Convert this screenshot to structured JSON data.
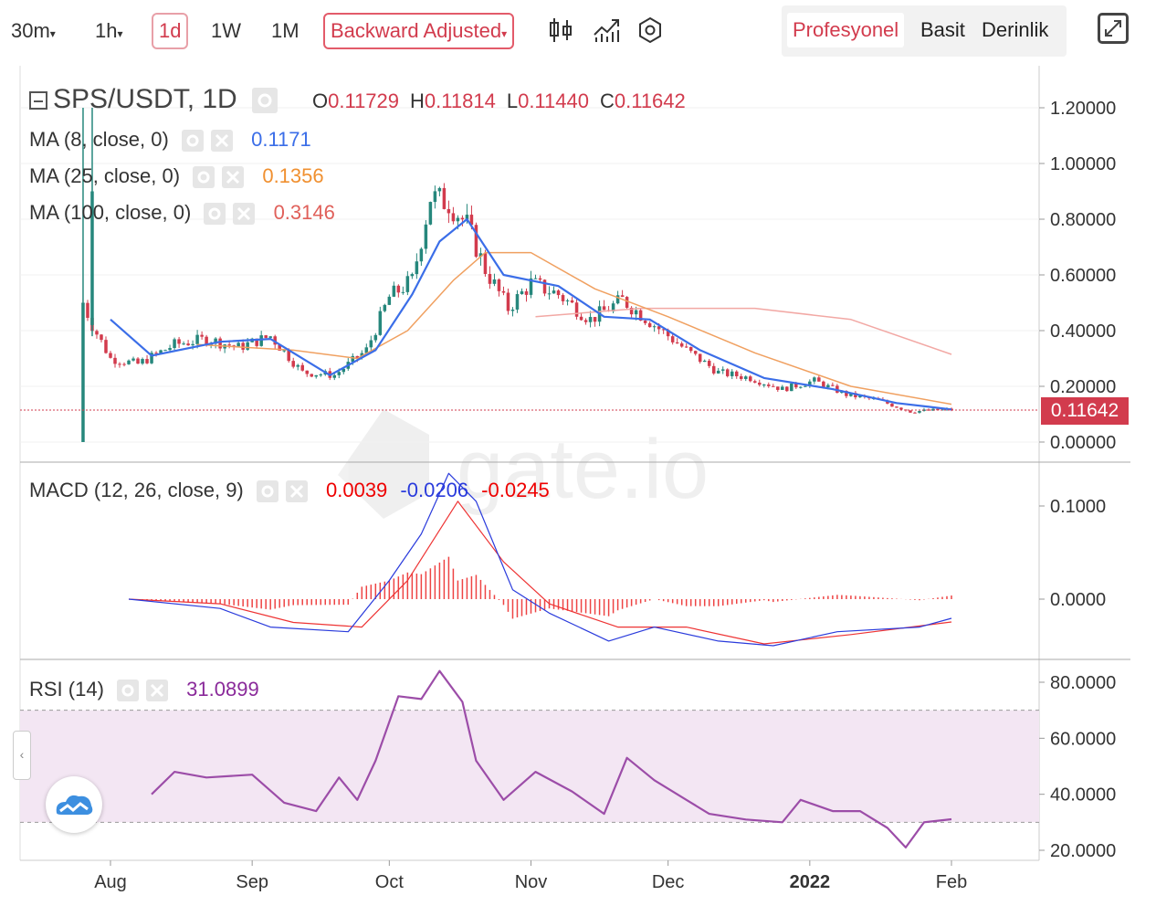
{
  "toolbar": {
    "intervals": [
      "30m",
      "1h",
      "1d",
      "1W",
      "1M"
    ],
    "active_interval": "1d",
    "adjust_label": "Backward Adjusted",
    "icons": [
      "candle-style-icon",
      "indicators-icon",
      "settings-icon"
    ],
    "modes": [
      "Profesyonel",
      "Basit",
      "Derinlik"
    ],
    "active_mode": "Profesyonel",
    "expand_icon": "expand-icon"
  },
  "watermark": "gate.io",
  "main": {
    "symbol": "SPS/USDT, 1D",
    "o_label": "O",
    "o": "0.11729",
    "h_label": "H",
    "h": "0.11814",
    "l_label": "L",
    "l": "0.11440",
    "c_label": "C",
    "c": "0.11642",
    "ma8_label": "MA (8, close, 0)",
    "ma8_value": "0.1171",
    "ma25_label": "MA (25, close, 0)",
    "ma25_value": "0.1356",
    "ma100_label": "MA (100, close, 0)",
    "ma100_value": "0.3146",
    "last_price": "0.11642"
  },
  "macd": {
    "label": "MACD (12, 26, close, 9)",
    "hist": "0.0039",
    "macd": "-0.0206",
    "signal": "-0.0245"
  },
  "rsi": {
    "label": "RSI (14)",
    "value": "31.0899"
  },
  "colors": {
    "up": "#26877c",
    "down": "#d23b4d",
    "ma8": "#3b6ee8",
    "ma25": "#f0a060",
    "ma100": "#f2a8a4",
    "macd_line": "#2a3bdc",
    "signal_line": "#e33",
    "rsi_line": "#9c4da8",
    "rsi_band": "#f3e6f3"
  },
  "chart_data": [
    {
      "type": "candlestick",
      "title": "SPS/USDT, 1D",
      "x_ticks": [
        "Aug",
        "Sep",
        "Oct",
        "Nov",
        "Dec",
        "2022",
        "Feb"
      ],
      "y_ticks": [
        "0.00000",
        "0.20000",
        "0.40000",
        "0.60000",
        "0.80000",
        "1.00000",
        "1.20000"
      ],
      "ylim": [
        0,
        1.2
      ],
      "close_series": [
        {
          "date": "2021-07-26",
          "close": 0.5
        },
        {
          "date": "2021-07-28",
          "close": 0.42
        },
        {
          "date": "2021-08-01",
          "close": 0.3
        },
        {
          "date": "2021-08-07",
          "close": 0.28
        },
        {
          "date": "2021-08-15",
          "close": 0.35
        },
        {
          "date": "2021-08-22",
          "close": 0.37
        },
        {
          "date": "2021-08-29",
          "close": 0.34
        },
        {
          "date": "2021-09-05",
          "close": 0.38
        },
        {
          "date": "2021-09-12",
          "close": 0.25
        },
        {
          "date": "2021-09-19",
          "close": 0.24
        },
        {
          "date": "2021-09-26",
          "close": 0.33
        },
        {
          "date": "2021-10-01",
          "close": 0.52
        },
        {
          "date": "2021-10-06",
          "close": 0.58
        },
        {
          "date": "2021-10-10",
          "close": 0.88
        },
        {
          "date": "2021-10-14",
          "close": 0.86
        },
        {
          "date": "2021-10-18",
          "close": 0.78
        },
        {
          "date": "2021-10-22",
          "close": 0.62
        },
        {
          "date": "2021-10-27",
          "close": 0.48
        },
        {
          "date": "2021-11-01",
          "close": 0.57
        },
        {
          "date": "2021-11-07",
          "close": 0.53
        },
        {
          "date": "2021-11-14",
          "close": 0.44
        },
        {
          "date": "2021-11-21",
          "close": 0.51
        },
        {
          "date": "2021-11-28",
          "close": 0.42
        },
        {
          "date": "2021-12-05",
          "close": 0.33
        },
        {
          "date": "2021-12-12",
          "close": 0.25
        },
        {
          "date": "2021-12-19",
          "close": 0.23
        },
        {
          "date": "2021-12-26",
          "close": 0.19
        },
        {
          "date": "2022-01-02",
          "close": 0.22
        },
        {
          "date": "2022-01-09",
          "close": 0.17
        },
        {
          "date": "2022-01-16",
          "close": 0.15
        },
        {
          "date": "2022-01-23",
          "close": 0.11
        },
        {
          "date": "2022-02-01",
          "close": 0.11642
        }
      ],
      "ma8": [
        {
          "date": "2021-08-01",
          "value": 0.44
        },
        {
          "date": "2021-08-10",
          "value": 0.31
        },
        {
          "date": "2021-08-25",
          "value": 0.36
        },
        {
          "date": "2021-09-05",
          "value": 0.37
        },
        {
          "date": "2021-09-18",
          "value": 0.24
        },
        {
          "date": "2021-09-28",
          "value": 0.33
        },
        {
          "date": "2021-10-06",
          "value": 0.53
        },
        {
          "date": "2021-10-12",
          "value": 0.72
        },
        {
          "date": "2021-10-18",
          "value": 0.8
        },
        {
          "date": "2021-10-26",
          "value": 0.6
        },
        {
          "date": "2021-11-07",
          "value": 0.56
        },
        {
          "date": "2021-11-17",
          "value": 0.45
        },
        {
          "date": "2021-11-27",
          "value": 0.44
        },
        {
          "date": "2021-12-08",
          "value": 0.33
        },
        {
          "date": "2021-12-22",
          "value": 0.23
        },
        {
          "date": "2022-01-06",
          "value": 0.19
        },
        {
          "date": "2022-01-20",
          "value": 0.14
        },
        {
          "date": "2022-02-01",
          "value": 0.1171
        }
      ],
      "ma25": [
        {
          "date": "2021-08-20",
          "value": 0.35
        },
        {
          "date": "2021-09-10",
          "value": 0.33
        },
        {
          "date": "2021-09-24",
          "value": 0.3
        },
        {
          "date": "2021-10-05",
          "value": 0.4
        },
        {
          "date": "2021-10-15",
          "value": 0.58
        },
        {
          "date": "2021-10-22",
          "value": 0.68
        },
        {
          "date": "2021-11-01",
          "value": 0.68
        },
        {
          "date": "2021-11-15",
          "value": 0.55
        },
        {
          "date": "2021-12-01",
          "value": 0.45
        },
        {
          "date": "2021-12-20",
          "value": 0.32
        },
        {
          "date": "2022-01-10",
          "value": 0.2
        },
        {
          "date": "2022-02-01",
          "value": 0.1356
        }
      ],
      "ma100": [
        {
          "date": "2021-11-02",
          "value": 0.45
        },
        {
          "date": "2021-11-25",
          "value": 0.48
        },
        {
          "date": "2021-12-20",
          "value": 0.48
        },
        {
          "date": "2022-01-10",
          "value": 0.44
        },
        {
          "date": "2022-02-01",
          "value": 0.3146
        }
      ]
    },
    {
      "type": "line",
      "title": "MACD (12, 26, close, 9)",
      "y_ticks": [
        "0.0000",
        "0.1000"
      ],
      "series": [
        {
          "name": "MACD",
          "points": [
            {
              "date": "2021-08-05",
              "value": 0.0
            },
            {
              "date": "2021-08-25",
              "value": -0.01
            },
            {
              "date": "2021-09-05",
              "value": -0.03
            },
            {
              "date": "2021-09-22",
              "value": -0.035
            },
            {
              "date": "2021-10-01",
              "value": 0.02
            },
            {
              "date": "2021-10-08",
              "value": 0.07
            },
            {
              "date": "2021-10-14",
              "value": 0.135
            },
            {
              "date": "2021-10-20",
              "value": 0.105
            },
            {
              "date": "2021-10-28",
              "value": 0.01
            },
            {
              "date": "2021-11-05",
              "value": -0.015
            },
            {
              "date": "2021-11-18",
              "value": -0.045
            },
            {
              "date": "2021-11-28",
              "value": -0.03
            },
            {
              "date": "2021-12-12",
              "value": -0.045
            },
            {
              "date": "2021-12-24",
              "value": -0.05
            },
            {
              "date": "2022-01-07",
              "value": -0.035
            },
            {
              "date": "2022-01-25",
              "value": -0.03
            },
            {
              "date": "2022-02-01",
              "value": -0.0206
            }
          ]
        },
        {
          "name": "Signal",
          "points": [
            {
              "date": "2021-08-05",
              "value": 0.0
            },
            {
              "date": "2021-08-25",
              "value": -0.005
            },
            {
              "date": "2021-09-10",
              "value": -0.025
            },
            {
              "date": "2021-09-25",
              "value": -0.03
            },
            {
              "date": "2021-10-05",
              "value": 0.02
            },
            {
              "date": "2021-10-16",
              "value": 0.105
            },
            {
              "date": "2021-10-26",
              "value": 0.04
            },
            {
              "date": "2021-11-05",
              "value": -0.005
            },
            {
              "date": "2021-11-20",
              "value": -0.03
            },
            {
              "date": "2021-12-05",
              "value": -0.03
            },
            {
              "date": "2021-12-22",
              "value": -0.048
            },
            {
              "date": "2022-01-10",
              "value": -0.038
            },
            {
              "date": "2022-02-01",
              "value": -0.0245
            }
          ]
        }
      ]
    },
    {
      "type": "line",
      "title": "RSI (14)",
      "y_ticks": [
        "20.0000",
        "40.0000",
        "60.0000",
        "80.0000"
      ],
      "bands": [
        30,
        70
      ],
      "series": [
        {
          "name": "RSI",
          "points": [
            {
              "date": "2021-08-10",
              "value": 40
            },
            {
              "date": "2021-08-15",
              "value": 48
            },
            {
              "date": "2021-08-22",
              "value": 46
            },
            {
              "date": "2021-09-01",
              "value": 47
            },
            {
              "date": "2021-09-08",
              "value": 37
            },
            {
              "date": "2021-09-15",
              "value": 34
            },
            {
              "date": "2021-09-20",
              "value": 46
            },
            {
              "date": "2021-09-24",
              "value": 38
            },
            {
              "date": "2021-09-28",
              "value": 52
            },
            {
              "date": "2021-10-03",
              "value": 75
            },
            {
              "date": "2021-10-08",
              "value": 74
            },
            {
              "date": "2021-10-12",
              "value": 84
            },
            {
              "date": "2021-10-17",
              "value": 73
            },
            {
              "date": "2021-10-20",
              "value": 52
            },
            {
              "date": "2021-10-26",
              "value": 38
            },
            {
              "date": "2021-11-02",
              "value": 48
            },
            {
              "date": "2021-11-10",
              "value": 41
            },
            {
              "date": "2021-11-17",
              "value": 33
            },
            {
              "date": "2021-11-22",
              "value": 53
            },
            {
              "date": "2021-11-28",
              "value": 45
            },
            {
              "date": "2021-12-05",
              "value": 38
            },
            {
              "date": "2021-12-10",
              "value": 33
            },
            {
              "date": "2021-12-18",
              "value": 31
            },
            {
              "date": "2021-12-26",
              "value": 30
            },
            {
              "date": "2021-12-30",
              "value": 38
            },
            {
              "date": "2022-01-06",
              "value": 34
            },
            {
              "date": "2022-01-12",
              "value": 34
            },
            {
              "date": "2022-01-18",
              "value": 28
            },
            {
              "date": "2022-01-22",
              "value": 21
            },
            {
              "date": "2022-01-26",
              "value": 30
            },
            {
              "date": "2022-02-01",
              "value": 31.0899
            }
          ]
        }
      ]
    }
  ]
}
